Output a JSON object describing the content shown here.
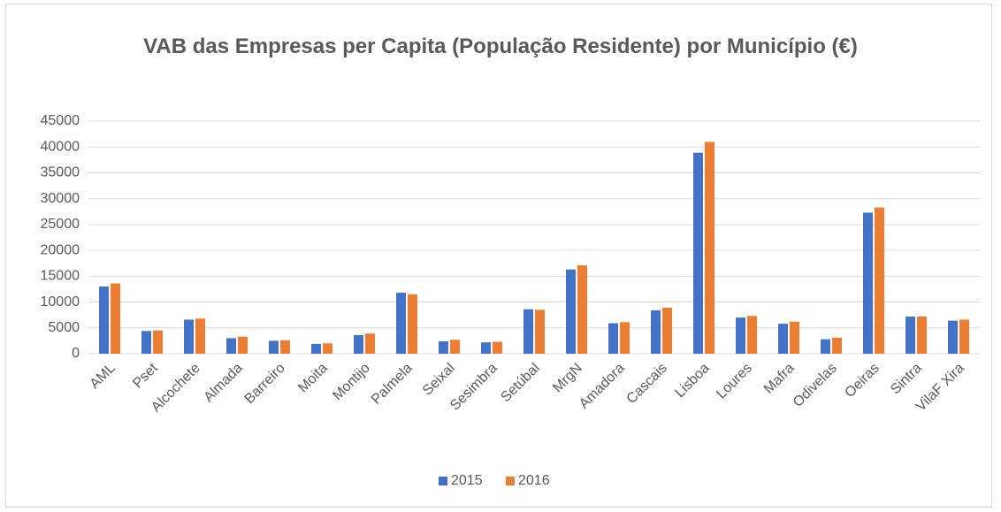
{
  "chart_data": {
    "type": "bar",
    "title": "VAB das Empresas per Capita (População Residente) por Município (€)",
    "categories": [
      "AML",
      "Pset",
      "Alcochete",
      "Almada",
      "Barreiro",
      "Moita",
      "Montijo",
      "Palmela",
      "Seixal",
      "Sesimbra",
      "Setúbal",
      "MrgN",
      "Amadora",
      "Cascais",
      "Lisboa",
      "Loures",
      "Mafra",
      "Odivelas",
      "Oeiras",
      "Sintra",
      "VilaF Xira"
    ],
    "series": [
      {
        "name": "2015",
        "color": "#4472c4",
        "values": [
          13000,
          4400,
          6600,
          3000,
          2500,
          1900,
          3600,
          11800,
          2400,
          2200,
          8600,
          16300,
          5900,
          8400,
          38900,
          7000,
          5800,
          2800,
          27300,
          7200,
          6400
        ]
      },
      {
        "name": "2016",
        "color": "#ed7d31",
        "values": [
          13600,
          4500,
          6800,
          3300,
          2600,
          2000,
          3900,
          11500,
          2700,
          2300,
          8500,
          17100,
          6100,
          8900,
          41000,
          7300,
          6200,
          3100,
          28300,
          7200,
          6600
        ]
      }
    ],
    "ylim": [
      0,
      45000
    ],
    "yticks": [
      0,
      5000,
      10000,
      15000,
      20000,
      25000,
      30000,
      35000,
      40000,
      45000
    ],
    "grid": true,
    "legend": "bottom"
  }
}
